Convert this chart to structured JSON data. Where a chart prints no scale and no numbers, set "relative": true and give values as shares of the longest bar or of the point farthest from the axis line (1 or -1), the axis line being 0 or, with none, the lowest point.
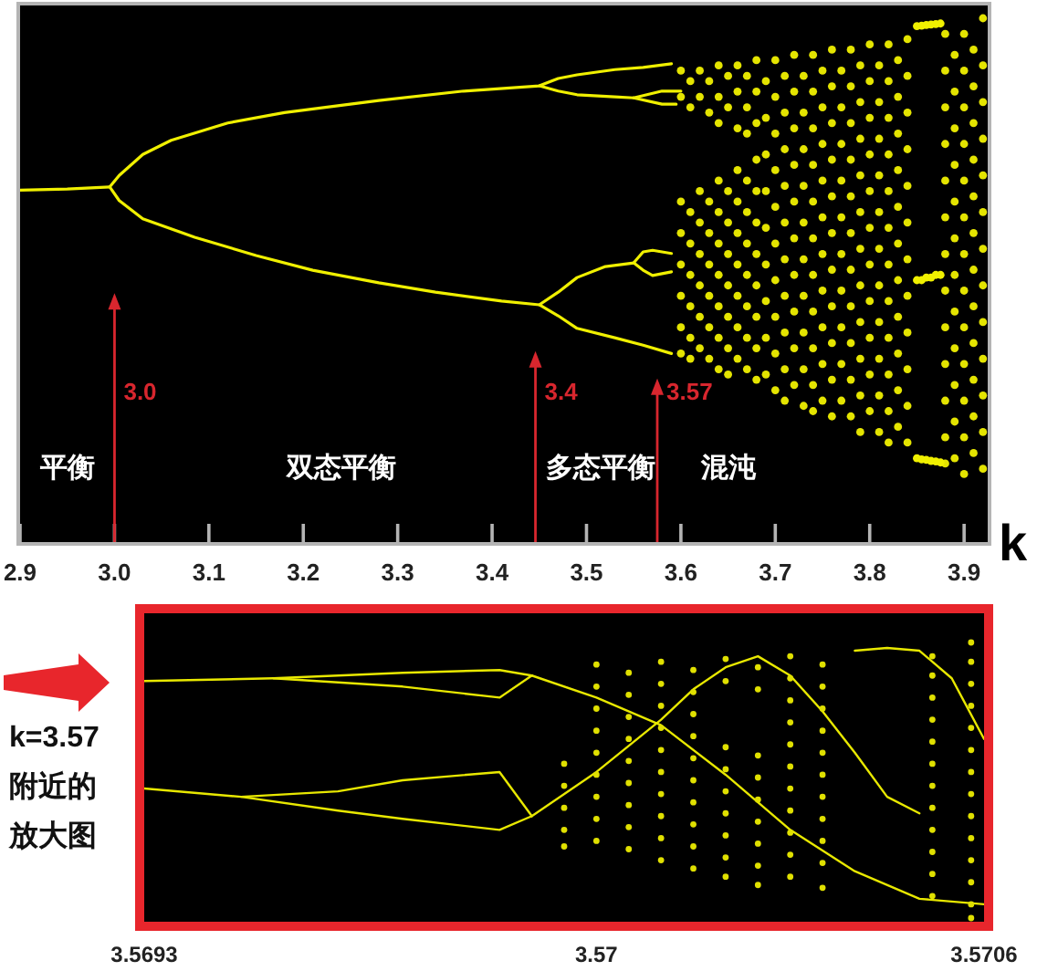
{
  "chart_data": [
    {
      "type": "scatter",
      "relative": true,
      "xlabel": "k",
      "xlim": [
        2.9,
        3.925
      ],
      "xticks": [
        2.9,
        {
          "value": 3,
          "label": "3.0"
        },
        3.1,
        3.2,
        3.3,
        3.4,
        3.5,
        3.6,
        3.7,
        3.8,
        3.9
      ],
      "annotations": [
        "3.0",
        "3.4",
        "3.57",
        "平衡",
        "双态平衡",
        "多态平衡",
        "混沌"
      ],
      "series": [
        {
          "type": "line",
          "color": "#f0f000",
          "x": [
            2.9,
            2.95,
            2.995
          ],
          "values": [
            0.672,
            0.674,
            0.678
          ]
        },
        {
          "type": "line",
          "color": "#f0f000",
          "x": [
            2.995,
            3.005,
            3.03,
            3.06,
            3.12,
            3.18,
            3.28,
            3.37,
            3.45,
            3.47,
            3.49,
            3.53,
            3.56,
            3.59
          ],
          "values": [
            0.678,
            0.7,
            0.74,
            0.767,
            0.8,
            0.82,
            0.843,
            0.861,
            0.871,
            0.885,
            0.892,
            0.902,
            0.906,
            0.913
          ]
        },
        {
          "type": "line",
          "color": "#f0f000",
          "x": [
            2.995,
            3.005,
            3.03,
            3.085,
            3.15,
            3.21,
            3.28,
            3.34,
            3.41,
            3.45,
            3.47,
            3.49,
            3.53,
            3.56,
            3.59
          ],
          "values": [
            0.678,
            0.652,
            0.617,
            0.582,
            0.547,
            0.519,
            0.495,
            0.477,
            0.46,
            0.453,
            0.432,
            0.408,
            0.39,
            0.376,
            0.36
          ]
        },
        {
          "type": "line",
          "color": "#f0f000",
          "x": [
            3.45,
            3.47,
            3.49,
            3.53,
            3.55,
            3.58,
            3.6
          ],
          "values": [
            0.871,
            0.861,
            0.854,
            0.85,
            0.848,
            0.861,
            0.861
          ]
        },
        {
          "type": "line",
          "color": "#f0f000",
          "x": [
            3.55,
            3.58,
            3.595
          ],
          "values": [
            0.848,
            0.836,
            0.836
          ]
        },
        {
          "type": "line",
          "color": "#f0f000",
          "x": [
            3.45,
            3.47,
            3.49,
            3.52,
            3.55,
            3.56,
            3.57,
            3.59
          ],
          "values": [
            0.453,
            0.477,
            0.505,
            0.526,
            0.533,
            0.554,
            0.557,
            0.551
          ]
        },
        {
          "type": "line",
          "color": "#f0f000",
          "x": [
            3.55,
            3.56,
            3.57,
            3.59
          ],
          "values": [
            0.533,
            0.519,
            0.509,
            0.516
          ]
        },
        {
          "type": "scatter",
          "color": "#e4e400",
          "x": [
            3.6,
            3.6,
            3.6,
            3.6,
            3.6,
            3.6,
            3.6,
            3.6,
            3.61,
            3.61,
            3.61,
            3.61,
            3.61,
            3.61,
            3.61,
            3.61,
            3.62,
            3.62,
            3.62,
            3.62,
            3.62,
            3.62,
            3.62,
            3.62,
            3.63,
            3.63,
            3.63,
            3.63,
            3.63,
            3.63,
            3.63,
            3.63,
            3.64,
            3.64,
            3.64,
            3.64,
            3.64,
            3.64,
            3.64,
            3.64,
            3.64,
            3.64,
            3.65,
            3.65,
            3.65,
            3.65,
            3.65,
            3.65,
            3.65,
            3.65,
            3.65,
            3.66,
            3.66,
            3.66,
            3.66,
            3.66,
            3.66,
            3.66,
            3.66,
            3.66,
            3.66,
            3.67,
            3.67,
            3.67,
            3.67,
            3.67,
            3.67,
            3.67,
            3.67,
            3.67,
            3.67,
            3.68,
            3.68,
            3.68,
            3.68,
            3.68,
            3.68,
            3.68,
            3.68,
            3.68,
            3.68,
            3.68,
            3.69,
            3.69,
            3.69,
            3.69,
            3.69,
            3.69,
            3.69,
            3.69,
            3.69,
            3.7,
            3.7,
            3.7,
            3.7,
            3.7,
            3.7,
            3.7,
            3.7,
            3.7,
            3.7
          ],
          "values": [
            0.9,
            0.85,
            0.65,
            0.59,
            0.53,
            0.47,
            0.41,
            0.36,
            0.88,
            0.83,
            0.63,
            0.57,
            0.51,
            0.45,
            0.39,
            0.35,
            0.9,
            0.85,
            0.67,
            0.61,
            0.55,
            0.49,
            0.43,
            0.37,
            0.88,
            0.82,
            0.65,
            0.59,
            0.53,
            0.47,
            0.41,
            0.35,
            0.91,
            0.85,
            0.8,
            0.69,
            0.63,
            0.57,
            0.51,
            0.45,
            0.39,
            0.33,
            0.89,
            0.83,
            0.67,
            0.61,
            0.55,
            0.49,
            0.43,
            0.37,
            0.32,
            0.91,
            0.86,
            0.79,
            0.71,
            0.65,
            0.59,
            0.53,
            0.47,
            0.41,
            0.35,
            0.89,
            0.83,
            0.78,
            0.69,
            0.63,
            0.57,
            0.51,
            0.45,
            0.39,
            0.33,
            0.92,
            0.86,
            0.8,
            0.73,
            0.67,
            0.61,
            0.55,
            0.49,
            0.43,
            0.37,
            0.31,
            0.88,
            0.81,
            0.74,
            0.67,
            0.6,
            0.53,
            0.46,
            0.39,
            0.32,
            0.92,
            0.85,
            0.78,
            0.71,
            0.64,
            0.57,
            0.5,
            0.43,
            0.36,
            0.29
          ]
        },
        {
          "type": "scatter",
          "color": "#e4e400",
          "x": [
            3.71,
            3.71,
            3.71,
            3.71,
            3.71,
            3.71,
            3.71,
            3.71,
            3.71,
            3.71,
            3.72,
            3.72,
            3.72,
            3.72,
            3.72,
            3.72,
            3.72,
            3.72,
            3.72,
            3.72,
            3.73,
            3.73,
            3.73,
            3.73,
            3.73,
            3.73,
            3.73,
            3.73,
            3.73,
            3.73,
            3.74,
            3.74,
            3.74,
            3.74,
            3.74,
            3.74,
            3.74,
            3.74,
            3.74,
            3.74,
            3.74,
            3.75,
            3.75,
            3.75,
            3.75,
            3.75,
            3.75,
            3.75,
            3.75,
            3.75,
            3.75,
            3.76,
            3.76,
            3.76,
            3.76,
            3.76,
            3.76,
            3.76,
            3.76,
            3.76,
            3.76,
            3.76,
            3.77,
            3.77,
            3.77,
            3.77,
            3.77,
            3.77,
            3.77,
            3.77,
            3.77,
            3.77,
            3.78,
            3.78,
            3.78,
            3.78,
            3.78,
            3.78,
            3.78,
            3.78,
            3.78,
            3.78,
            3.78,
            3.79,
            3.79,
            3.79,
            3.79,
            3.79,
            3.79,
            3.79,
            3.79,
            3.79,
            3.79,
            3.79
          ],
          "values": [
            0.89,
            0.82,
            0.75,
            0.68,
            0.61,
            0.54,
            0.47,
            0.4,
            0.33,
            0.27,
            0.93,
            0.86,
            0.79,
            0.72,
            0.65,
            0.58,
            0.51,
            0.44,
            0.37,
            0.3,
            0.89,
            0.82,
            0.75,
            0.68,
            0.61,
            0.54,
            0.47,
            0.4,
            0.33,
            0.26,
            0.93,
            0.86,
            0.79,
            0.72,
            0.65,
            0.58,
            0.51,
            0.44,
            0.37,
            0.3,
            0.25,
            0.9,
            0.83,
            0.76,
            0.69,
            0.62,
            0.55,
            0.48,
            0.41,
            0.34,
            0.27,
            0.94,
            0.87,
            0.8,
            0.73,
            0.66,
            0.59,
            0.52,
            0.45,
            0.38,
            0.31,
            0.24,
            0.9,
            0.83,
            0.76,
            0.69,
            0.62,
            0.55,
            0.48,
            0.41,
            0.34,
            0.27,
            0.94,
            0.87,
            0.8,
            0.73,
            0.66,
            0.59,
            0.52,
            0.45,
            0.38,
            0.31,
            0.24,
            0.91,
            0.84,
            0.77,
            0.7,
            0.63,
            0.56,
            0.49,
            0.42,
            0.35,
            0.28,
            0.21
          ]
        },
        {
          "type": "scatter",
          "color": "#e4e400",
          "x": [
            3.8,
            3.8,
            3.8,
            3.8,
            3.8,
            3.8,
            3.8,
            3.8,
            3.8,
            3.8,
            3.8,
            3.81,
            3.81,
            3.81,
            3.81,
            3.81,
            3.81,
            3.81,
            3.81,
            3.81,
            3.81,
            3.81,
            3.82,
            3.82,
            3.82,
            3.82,
            3.82,
            3.82,
            3.82,
            3.82,
            3.82,
            3.82,
            3.82,
            3.82,
            3.83,
            3.83,
            3.83,
            3.83,
            3.83,
            3.83,
            3.83,
            3.83,
            3.83,
            3.83,
            3.83,
            3.84,
            3.84,
            3.84,
            3.84,
            3.84,
            3.84,
            3.84,
            3.84,
            3.84,
            3.84,
            3.84,
            3.84,
            3.88,
            3.88,
            3.88,
            3.88,
            3.88,
            3.88,
            3.88,
            3.88,
            3.88,
            3.88,
            3.88,
            3.88,
            3.88,
            3.89,
            3.89,
            3.89,
            3.89,
            3.89,
            3.89,
            3.89,
            3.89,
            3.89,
            3.89,
            3.89,
            3.89,
            3.9,
            3.9,
            3.9,
            3.9,
            3.9,
            3.9,
            3.9,
            3.9,
            3.9,
            3.9,
            3.9,
            3.9,
            3.9,
            3.91,
            3.91,
            3.91,
            3.91,
            3.91,
            3.91,
            3.91,
            3.91,
            3.91,
            3.91,
            3.91,
            3.91,
            3.92,
            3.92,
            3.92,
            3.92,
            3.92,
            3.92,
            3.92,
            3.92,
            3.92,
            3.92,
            3.92,
            3.92,
            3.92
          ],
          "values": [
            0.95,
            0.88,
            0.81,
            0.74,
            0.67,
            0.6,
            0.53,
            0.46,
            0.39,
            0.32,
            0.25,
            0.91,
            0.84,
            0.77,
            0.7,
            0.63,
            0.56,
            0.49,
            0.42,
            0.35,
            0.28,
            0.21,
            0.95,
            0.88,
            0.81,
            0.74,
            0.67,
            0.6,
            0.53,
            0.46,
            0.39,
            0.32,
            0.25,
            0.19,
            0.92,
            0.85,
            0.78,
            0.71,
            0.64,
            0.57,
            0.5,
            0.43,
            0.36,
            0.29,
            0.22,
            0.96,
            0.89,
            0.82,
            0.75,
            0.68,
            0.61,
            0.54,
            0.47,
            0.4,
            0.33,
            0.26,
            0.19,
            0.97,
            0.9,
            0.83,
            0.76,
            0.69,
            0.62,
            0.55,
            0.48,
            0.41,
            0.34,
            0.27,
            0.2,
            0.15,
            0.93,
            0.86,
            0.79,
            0.72,
            0.65,
            0.58,
            0.51,
            0.44,
            0.37,
            0.3,
            0.23,
            0.16,
            0.97,
            0.9,
            0.83,
            0.76,
            0.69,
            0.62,
            0.55,
            0.48,
            0.41,
            0.34,
            0.27,
            0.2,
            0.13,
            0.94,
            0.87,
            0.8,
            0.73,
            0.66,
            0.59,
            0.52,
            0.45,
            0.38,
            0.31,
            0.24,
            0.17,
            1,
            0.91,
            0.84,
            0.77,
            0.7,
            0.63,
            0.56,
            0.49,
            0.42,
            0.35,
            0.28,
            0.21,
            0.14
          ]
        },
        {
          "type": "scatter",
          "color": "#f0f000",
          "x": [
            3.85,
            3.85,
            3.85,
            3.855,
            3.855,
            3.855,
            3.86,
            3.86,
            3.86,
            3.865,
            3.865,
            3.865,
            3.87,
            3.87,
            3.87,
            3.875,
            3.875,
            3.875
          ],
          "values": [
            0.985,
            0.5,
            0.16,
            0.986,
            0.5,
            0.158,
            0.987,
            0.505,
            0.157,
            0.988,
            0.505,
            0.155,
            0.989,
            0.51,
            0.154,
            0.99,
            0.51,
            0.152
          ]
        }
      ]
    },
    {
      "type": "scatter",
      "relative": true,
      "xlim": [
        3.5693,
        3.5706
      ],
      "xticks": [
        3.5693,
        3.57,
        3.5706
      ],
      "annotations": [
        "k=3.57附近的放大图"
      ],
      "series": [
        {
          "type": "line",
          "color": "#e8e800",
          "x": [
            3.5693,
            3.5695,
            3.5697,
            3.56985,
            3.5699
          ],
          "values": [
            0.86,
            0.87,
            0.89,
            0.9,
            0.88
          ]
        },
        {
          "type": "line",
          "color": "#e8e800",
          "x": [
            3.5695,
            3.5697,
            3.56985,
            3.5699
          ],
          "values": [
            0.87,
            0.84,
            0.8,
            0.88
          ]
        },
        {
          "type": "line",
          "color": "#e8e800",
          "x": [
            3.5693,
            3.56945,
            3.5696,
            3.5697,
            3.56985,
            3.5699
          ],
          "values": [
            0.47,
            0.44,
            0.46,
            0.5,
            0.53,
            0.37
          ]
        },
        {
          "type": "line",
          "color": "#e8e800",
          "x": [
            3.56945,
            3.5696,
            3.5697,
            3.56985,
            3.5699
          ],
          "values": [
            0.44,
            0.39,
            0.36,
            0.32,
            0.37
          ]
        },
        {
          "type": "line",
          "color": "#e8e800",
          "x": [
            3.5699,
            3.57,
            3.5701,
            3.5702,
            3.5703,
            3.5704,
            3.5705,
            3.5706
          ],
          "values": [
            0.88,
            0.8,
            0.7,
            0.52,
            0.32,
            0.17,
            0.07,
            0.05
          ]
        },
        {
          "type": "line",
          "color": "#e8e800",
          "x": [
            3.5699,
            3.57,
            3.5701,
            3.57015,
            3.5702,
            3.57025,
            3.5703,
            3.57035,
            3.5704,
            3.57045,
            3.5705
          ],
          "values": [
            0.37,
            0.53,
            0.72,
            0.83,
            0.91,
            0.95,
            0.88,
            0.75,
            0.6,
            0.44,
            0.38
          ]
        },
        {
          "type": "line",
          "color": "#e8e800",
          "x": [
            3.5704,
            3.57045,
            3.5705,
            3.57055,
            3.5706
          ],
          "values": [
            0.97,
            0.98,
            0.97,
            0.87,
            0.65
          ]
        },
        {
          "type": "scatter",
          "color": "#e0e000",
          "x": [
            3.56995,
            3.56995,
            3.56995,
            3.56995,
            3.56995,
            3.57,
            3.57,
            3.57,
            3.57,
            3.57,
            3.57,
            3.57,
            3.57,
            3.57,
            3.57005,
            3.57005,
            3.57005,
            3.57005,
            3.57005,
            3.57005,
            3.57005,
            3.57005,
            3.57005,
            3.5701,
            3.5701,
            3.5701,
            3.5701,
            3.5701,
            3.5701,
            3.5701,
            3.5701,
            3.5701,
            3.5701,
            3.57015,
            3.57015,
            3.57015,
            3.57015,
            3.57015,
            3.57015,
            3.57015,
            3.57015,
            3.57015,
            3.57015,
            3.5702,
            3.5702,
            3.5702,
            3.5702,
            3.5702,
            3.5702,
            3.5702,
            3.5702,
            3.5702,
            3.57025,
            3.57025,
            3.57025,
            3.57025,
            3.57025,
            3.57025,
            3.57025,
            3.57025,
            3.57025,
            3.5703,
            3.5703,
            3.5703,
            3.5703,
            3.5703,
            3.5703,
            3.5703,
            3.5703,
            3.5703,
            3.5703,
            3.5703,
            3.57035,
            3.57035,
            3.57035,
            3.57035,
            3.57035,
            3.57035,
            3.57035,
            3.57035,
            3.57035,
            3.57035,
            3.57035,
            3.57052,
            3.57052,
            3.57052,
            3.57052,
            3.57052,
            3.57052,
            3.57052,
            3.57052,
            3.57052,
            3.57052,
            3.57052,
            3.57052,
            3.57058,
            3.57058,
            3.57058,
            3.57058,
            3.57058,
            3.57058,
            3.57058,
            3.57058,
            3.57058,
            3.57058,
            3.57058,
            3.57058,
            3.57058,
            3.57058
          ],
          "values": [
            0.56,
            0.48,
            0.4,
            0.32,
            0.26,
            0.92,
            0.84,
            0.76,
            0.68,
            0.6,
            0.52,
            0.44,
            0.36,
            0.28,
            0.89,
            0.81,
            0.73,
            0.65,
            0.57,
            0.49,
            0.41,
            0.33,
            0.25,
            0.93,
            0.85,
            0.77,
            0.69,
            0.61,
            0.53,
            0.45,
            0.37,
            0.29,
            0.21,
            0.9,
            0.82,
            0.74,
            0.66,
            0.58,
            0.5,
            0.42,
            0.34,
            0.26,
            0.18,
            0.94,
            0.86,
            0.62,
            0.54,
            0.46,
            0.38,
            0.3,
            0.22,
            0.15,
            0.91,
            0.83,
            0.59,
            0.51,
            0.43,
            0.35,
            0.27,
            0.19,
            0.12,
            0.95,
            0.87,
            0.79,
            0.71,
            0.63,
            0.55,
            0.47,
            0.39,
            0.31,
            0.23,
            0.15,
            0.92,
            0.84,
            0.76,
            0.68,
            0.6,
            0.52,
            0.44,
            0.36,
            0.28,
            0.2,
            0.11,
            0.95,
            0.88,
            0.8,
            0.72,
            0.64,
            0.56,
            0.48,
            0.4,
            0.32,
            0.24,
            0.16,
            0.08,
            1,
            0.93,
            0.85,
            0.77,
            0.69,
            0.61,
            0.53,
            0.45,
            0.37,
            0.29,
            0.21,
            0.13,
            0.05,
            0
          ]
        }
      ]
    }
  ]
}
